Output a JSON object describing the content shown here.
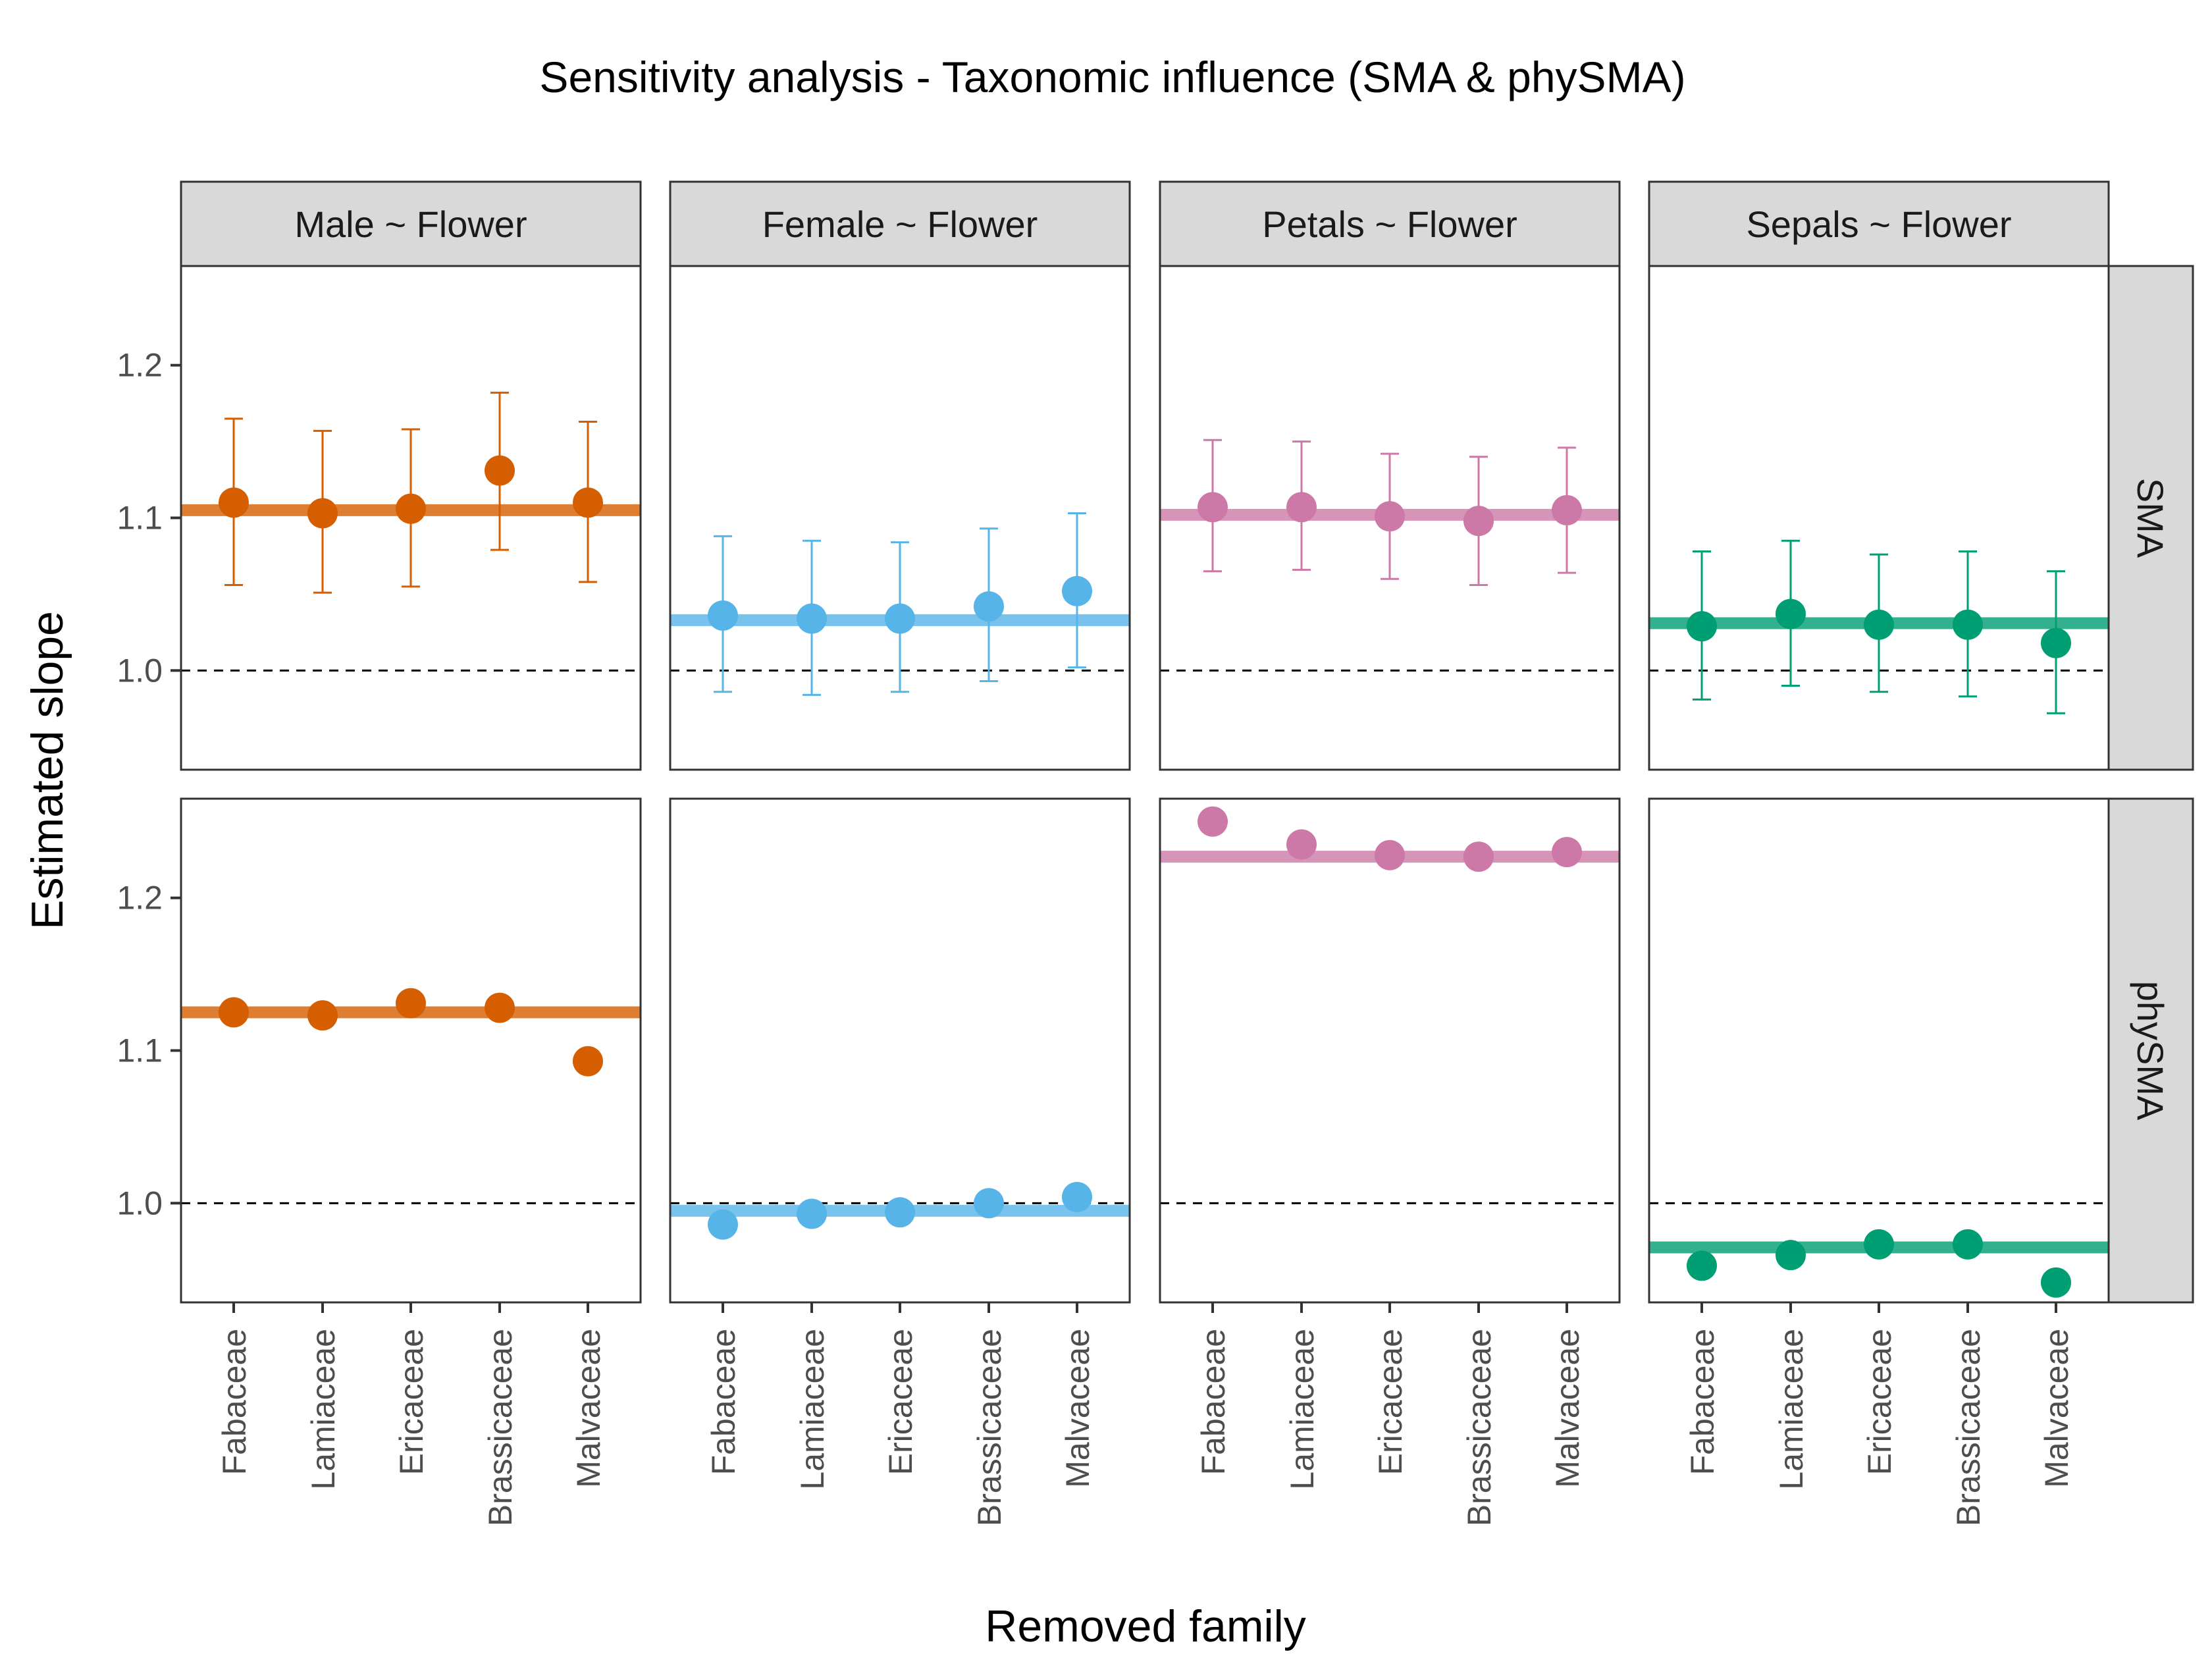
{
  "chart_data": {
    "type": "scatter",
    "title": "Sensitivity analysis - Taxonomic influence (SMA & phySMA)",
    "xlabel": "Removed family",
    "ylabel": "Estimated slope",
    "ylim": [
      0.935,
      1.265
    ],
    "yticks": [
      1.0,
      1.1,
      1.2
    ],
    "yticks_labels": [
      "1.0",
      "1.1",
      "1.2"
    ],
    "reference_line": 1.0,
    "categories": [
      "Fabaceae",
      "Lamiaceae",
      "Ericaceae",
      "Brassicaceae",
      "Malvaceae"
    ],
    "facet_columns": [
      "Male ~ Flower",
      "Female ~ Flower",
      "Petals ~ Flower",
      "Sepals ~ Flower"
    ],
    "facet_rows": [
      "SMA",
      "phySMA"
    ],
    "grid": false,
    "legend": "none",
    "column_colors": [
      "#d55e00",
      "#56b4e9",
      "#cc79a7",
      "#009e73"
    ],
    "panels": [
      {
        "column": "Male ~ Flower",
        "row": "SMA",
        "overall": 1.105,
        "values": [
          1.11,
          1.103,
          1.106,
          1.131,
          1.11
        ],
        "lower": [
          1.056,
          1.051,
          1.055,
          1.079,
          1.058
        ],
        "upper": [
          1.165,
          1.157,
          1.158,
          1.182,
          1.163
        ]
      },
      {
        "column": "Female ~ Flower",
        "row": "SMA",
        "overall": 1.033,
        "values": [
          1.036,
          1.034,
          1.034,
          1.042,
          1.052
        ],
        "lower": [
          0.986,
          0.984,
          0.986,
          0.993,
          1.002
        ],
        "upper": [
          1.088,
          1.085,
          1.084,
          1.093,
          1.103
        ]
      },
      {
        "column": "Petals ~ Flower",
        "row": "SMA",
        "overall": 1.102,
        "values": [
          1.107,
          1.107,
          1.101,
          1.098,
          1.105
        ],
        "lower": [
          1.065,
          1.066,
          1.06,
          1.056,
          1.064
        ],
        "upper": [
          1.151,
          1.15,
          1.142,
          1.14,
          1.146
        ]
      },
      {
        "column": "Sepals ~ Flower",
        "row": "SMA",
        "overall": 1.031,
        "values": [
          1.029,
          1.037,
          1.03,
          1.03,
          1.018
        ],
        "lower": [
          0.981,
          0.99,
          0.986,
          0.983,
          0.972
        ],
        "upper": [
          1.078,
          1.085,
          1.076,
          1.078,
          1.065
        ]
      },
      {
        "column": "Male ~ Flower",
        "row": "phySMA",
        "overall": 1.125,
        "values": [
          1.125,
          1.123,
          1.131,
          1.128,
          1.093
        ]
      },
      {
        "column": "Female ~ Flower",
        "row": "phySMA",
        "overall": 0.995,
        "values": [
          0.986,
          0.993,
          0.994,
          1.0,
          1.004
        ]
      },
      {
        "column": "Petals ~ Flower",
        "row": "phySMA",
        "overall": 1.227,
        "values": [
          1.25,
          1.235,
          1.228,
          1.227,
          1.23
        ]
      },
      {
        "column": "Sepals ~ Flower",
        "row": "phySMA",
        "overall": 0.971,
        "values": [
          0.959,
          0.966,
          0.973,
          0.973,
          0.948
        ]
      }
    ]
  }
}
